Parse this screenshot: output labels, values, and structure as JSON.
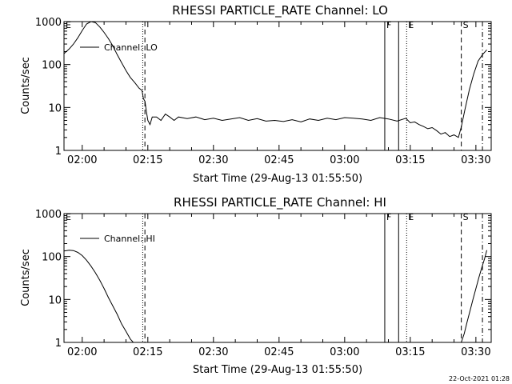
{
  "footer": {
    "timestamp": "22-Oct-2021 01:28"
  },
  "chart_data": [
    {
      "type": "line",
      "title": "RHESSI PARTICLE_RATE Channel: LO",
      "xlabel": "Start Time (29-Aug-13 01:55:50)",
      "ylabel": "Counts/sec",
      "legend": {
        "label": "Channel: LO",
        "placement": "top-left"
      },
      "y_scale": "log",
      "xlim": [
        "01:55:50",
        "03:33:30"
      ],
      "ylim": [
        1,
        1000
      ],
      "x_ticks": [
        "02:00",
        "02:15",
        "02:30",
        "02:45",
        "03:00",
        "03:15",
        "03:30"
      ],
      "y_ticks": [
        "1",
        "10",
        "100",
        "1000"
      ],
      "markers": [
        {
          "label": "E",
          "time": "01:55:50",
          "style": "dashed"
        },
        {
          "label": "",
          "time": "02:13:50",
          "style": "dotted"
        },
        {
          "label": "",
          "time": "02:14:20",
          "style": "dashed"
        },
        {
          "label": "F",
          "time": "03:09:10",
          "style": "solid"
        },
        {
          "label": "",
          "time": "03:12:20",
          "style": "solid"
        },
        {
          "label": "E",
          "time": "03:14:10",
          "style": "dotted"
        },
        {
          "label": "S",
          "time": "03:26:40",
          "style": "dashed"
        },
        {
          "label": "",
          "time": "03:31:30",
          "style": "dashdot"
        }
      ],
      "series": [
        {
          "x": [
            "01:55:50",
            "01:57:00",
            "01:58:00",
            "01:59:00",
            "02:00:00",
            "02:01:00",
            "02:02:00",
            "02:03:00",
            "02:04:00",
            "02:05:00",
            "02:06:00",
            "02:07:00",
            "02:08:00",
            "02:09:00",
            "02:10:00",
            "02:11:00",
            "02:12:00",
            "02:13:00",
            "02:13:40",
            "02:14:00",
            "02:14:20",
            "02:14:40",
            "02:15:00",
            "02:15:30",
            "02:16:00",
            "02:17:00",
            "02:18:00",
            "02:19:00",
            "02:20:00",
            "02:21:00",
            "02:22:00",
            "02:24:00",
            "02:26:00",
            "02:28:00",
            "02:30:00",
            "02:32:00",
            "02:34:00",
            "02:36:00",
            "02:38:00",
            "02:40:00",
            "02:42:00",
            "02:44:00",
            "02:46:00",
            "02:48:00",
            "02:50:00",
            "02:52:00",
            "02:54:00",
            "02:56:00",
            "02:58:00",
            "03:00:00",
            "03:02:00",
            "03:04:00",
            "03:06:00",
            "03:08:00",
            "03:10:00",
            "03:12:00",
            "03:14:00",
            "03:15:00",
            "03:16:00",
            "03:17:00",
            "03:18:00",
            "03:19:00",
            "03:20:00",
            "03:21:00",
            "03:22:00",
            "03:23:00",
            "03:24:00",
            "03:25:00",
            "03:26:00",
            "03:26:40",
            "03:27:30",
            "03:28:30",
            "03:29:30",
            "03:30:30",
            "03:31:30",
            "03:32:30"
          ],
          "values": [
            180,
            230,
            300,
            420,
            620,
            880,
            1000,
            950,
            750,
            560,
            400,
            270,
            170,
            110,
            72,
            50,
            38,
            28,
            25,
            16,
            14,
            8,
            5,
            4,
            6,
            6,
            5,
            7,
            6,
            5,
            6,
            5.5,
            6,
            5.2,
            5.6,
            5,
            5.4,
            5.8,
            5,
            5.5,
            4.8,
            5,
            4.7,
            5.2,
            4.6,
            5.4,
            5,
            5.6,
            5.2,
            5.8,
            5.6,
            5.4,
            5,
            5.8,
            5.4,
            4.8,
            5.6,
            4.4,
            4.6,
            4,
            3.6,
            3.2,
            3.4,
            2.9,
            2.4,
            2.6,
            2.1,
            2.3,
            2,
            3.5,
            9,
            26,
            60,
            120,
            170,
            220
          ]
        }
      ]
    },
    {
      "type": "line",
      "title": "RHESSI PARTICLE_RATE Channel: HI",
      "xlabel": "Start Time (29-Aug-13 01:55:50)",
      "ylabel": "Counts/sec",
      "legend": {
        "label": "Channel: HI",
        "placement": "top-left"
      },
      "y_scale": "log",
      "xlim": [
        "01:55:50",
        "03:33:30"
      ],
      "ylim": [
        1,
        1000
      ],
      "x_ticks": [
        "02:00",
        "02:15",
        "02:30",
        "02:45",
        "03:00",
        "03:15",
        "03:30"
      ],
      "y_ticks": [
        "1",
        "10",
        "100",
        "1000"
      ],
      "markers": [
        {
          "label": "E",
          "time": "01:55:50",
          "style": "dashed"
        },
        {
          "label": "",
          "time": "02:13:50",
          "style": "dotted"
        },
        {
          "label": "",
          "time": "02:14:20",
          "style": "dashed"
        },
        {
          "label": "F",
          "time": "03:09:10",
          "style": "solid"
        },
        {
          "label": "",
          "time": "03:12:20",
          "style": "solid"
        },
        {
          "label": "E",
          "time": "03:14:10",
          "style": "dotted"
        },
        {
          "label": "S",
          "time": "03:26:40",
          "style": "dashed"
        },
        {
          "label": "",
          "time": "03:31:30",
          "style": "dashdot"
        }
      ],
      "series": [
        {
          "x": [
            "01:55:50",
            "01:57:00",
            "01:58:00",
            "01:59:00",
            "02:00:00",
            "02:01:00",
            "02:02:00",
            "02:03:00",
            "02:04:00",
            "02:05:00",
            "02:06:00",
            "02:07:00",
            "02:08:00",
            "02:09:00",
            "02:10:00",
            "02:11:00",
            "02:11:40"
          ],
          "values": [
            135,
            140,
            138,
            125,
            105,
            82,
            60,
            42,
            28,
            18,
            11,
            7,
            4.5,
            2.7,
            1.8,
            1.2,
            1
          ]
        },
        {
          "x": [
            "03:26:40",
            "03:27:20",
            "03:28:00",
            "03:28:40",
            "03:29:20",
            "03:30:00",
            "03:30:40",
            "03:31:20",
            "03:32:00",
            "03:32:30"
          ],
          "values": [
            1,
            1.6,
            3,
            5.5,
            10,
            18,
            32,
            55,
            90,
            140
          ]
        }
      ]
    }
  ]
}
